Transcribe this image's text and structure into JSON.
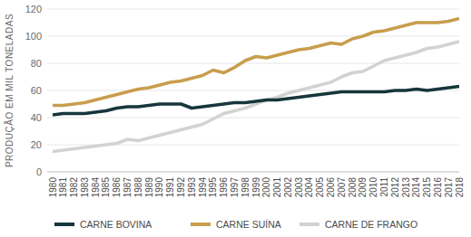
{
  "chart_data": {
    "type": "line",
    "y_label": "PRODUÇÃO EM MIL TONELADAS",
    "categories": [
      "1980",
      "1981",
      "1982",
      "1983",
      "1984",
      "1985",
      "1986",
      "1987",
      "1988",
      "1989",
      "1990",
      "1991",
      "1992",
      "1993",
      "1994",
      "1995",
      "1996",
      "1997",
      "1998",
      "1999",
      "2000",
      "2001",
      "2002",
      "2003",
      "2004",
      "2005",
      "2006",
      "2007",
      "2008",
      "2009",
      "2010",
      "2011",
      "2012",
      "2013",
      "2014",
      "2015",
      "2016",
      "2017",
      "2018"
    ],
    "series": [
      {
        "name": "CARNE BOVINA",
        "color": "#16363b",
        "values": [
          42,
          43,
          43,
          43,
          44,
          45,
          47,
          48,
          48,
          49,
          50,
          50,
          50,
          47,
          48,
          49,
          50,
          51,
          51,
          52,
          53,
          53,
          54,
          55,
          56,
          57,
          58,
          59,
          59,
          59,
          59,
          59,
          60,
          60,
          61,
          60,
          61,
          62,
          63
        ]
      },
      {
        "name": "CARNE SUÍNA",
        "color": "#c89d4c",
        "values": [
          49,
          49,
          50,
          51,
          53,
          55,
          57,
          59,
          61,
          62,
          64,
          66,
          67,
          69,
          71,
          75,
          73,
          77,
          82,
          85,
          84,
          86,
          88,
          90,
          91,
          93,
          95,
          94,
          98,
          100,
          103,
          104,
          106,
          108,
          110,
          110,
          110,
          111,
          113
        ]
      },
      {
        "name": "CARNE DE FRANGO",
        "color": "#d2d2d2",
        "values": [
          15,
          16,
          17,
          18,
          19,
          20,
          21,
          24,
          23,
          25,
          27,
          29,
          31,
          33,
          35,
          39,
          43,
          45,
          47,
          50,
          53,
          55,
          58,
          60,
          62,
          64,
          66,
          70,
          73,
          74,
          78,
          82,
          84,
          86,
          88,
          91,
          92,
          94,
          96
        ]
      }
    ],
    "ylim": [
      0,
      120
    ],
    "yticks": [
      0,
      20,
      40,
      60,
      80,
      100,
      120
    ],
    "grid": true,
    "legend": "bottom"
  }
}
